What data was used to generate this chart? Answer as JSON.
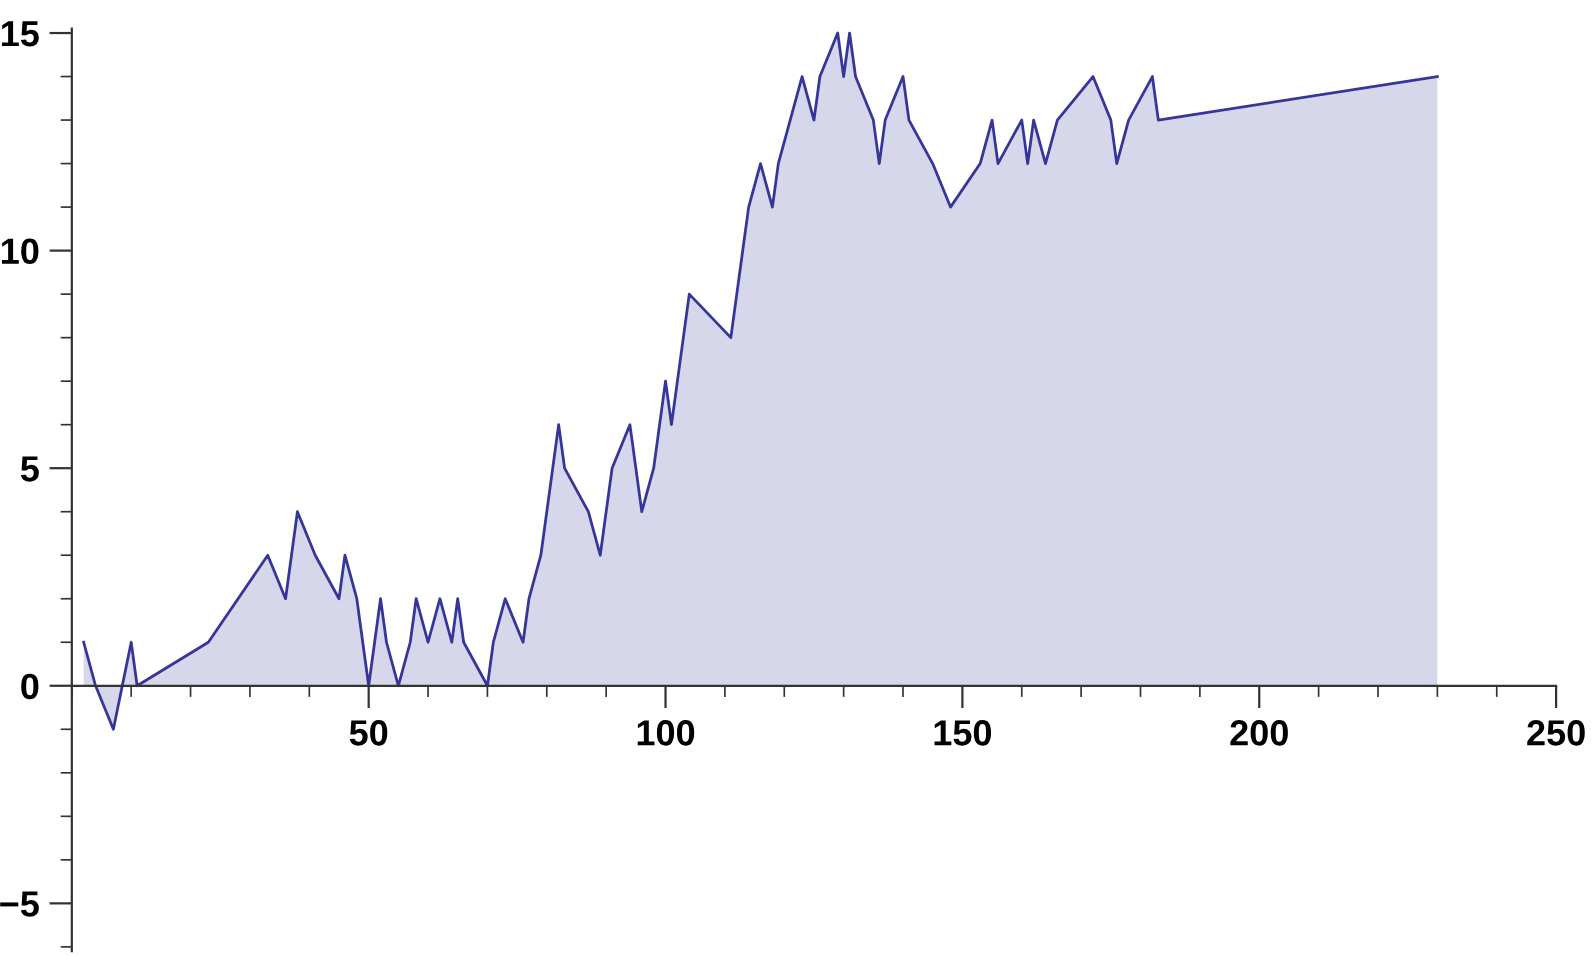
{
  "chart_data": {
    "type": "area",
    "x": [
      2,
      4,
      7,
      10,
      11,
      23,
      33,
      36,
      38,
      41,
      45,
      46,
      48,
      50,
      52,
      53,
      55,
      57,
      58,
      60,
      62,
      64,
      65,
      66,
      70,
      71,
      73,
      76,
      77,
      79,
      82,
      83,
      87,
      89,
      91,
      94,
      96,
      98,
      100,
      101,
      104,
      111,
      114,
      116,
      118,
      119,
      123,
      125,
      126,
      129,
      130,
      131,
      132,
      135,
      136,
      137,
      140,
      141,
      145,
      148,
      153,
      155,
      156,
      160,
      161,
      162,
      164,
      166,
      172,
      175,
      176,
      178,
      182,
      183,
      230
    ],
    "series": [
      {
        "color": "#36369a",
        "values": [
          1,
          0,
          -1,
          1,
          0,
          1,
          3,
          2,
          4,
          3,
          2,
          3,
          2,
          0,
          2,
          1,
          0,
          1,
          2,
          1,
          2,
          1,
          2,
          1,
          0,
          1,
          2,
          1,
          2,
          3,
          6,
          5,
          4,
          3,
          5,
          6,
          4,
          5,
          7,
          6,
          9,
          8,
          11,
          12,
          11,
          12,
          14,
          13,
          14,
          15,
          14,
          15,
          14,
          13,
          12,
          13,
          14,
          13,
          12,
          11,
          12,
          13,
          12,
          13,
          12,
          13,
          12,
          13,
          14,
          13,
          12,
          13,
          14,
          13,
          14
        ]
      }
    ],
    "xlim": [
      0,
      250
    ],
    "ylim": [
      -6.1,
      15.1
    ],
    "xticks": [
      50,
      100,
      150,
      200,
      250
    ],
    "yticks": [
      -5,
      0,
      5,
      10,
      15
    ],
    "grid": false,
    "legend": false
  }
}
